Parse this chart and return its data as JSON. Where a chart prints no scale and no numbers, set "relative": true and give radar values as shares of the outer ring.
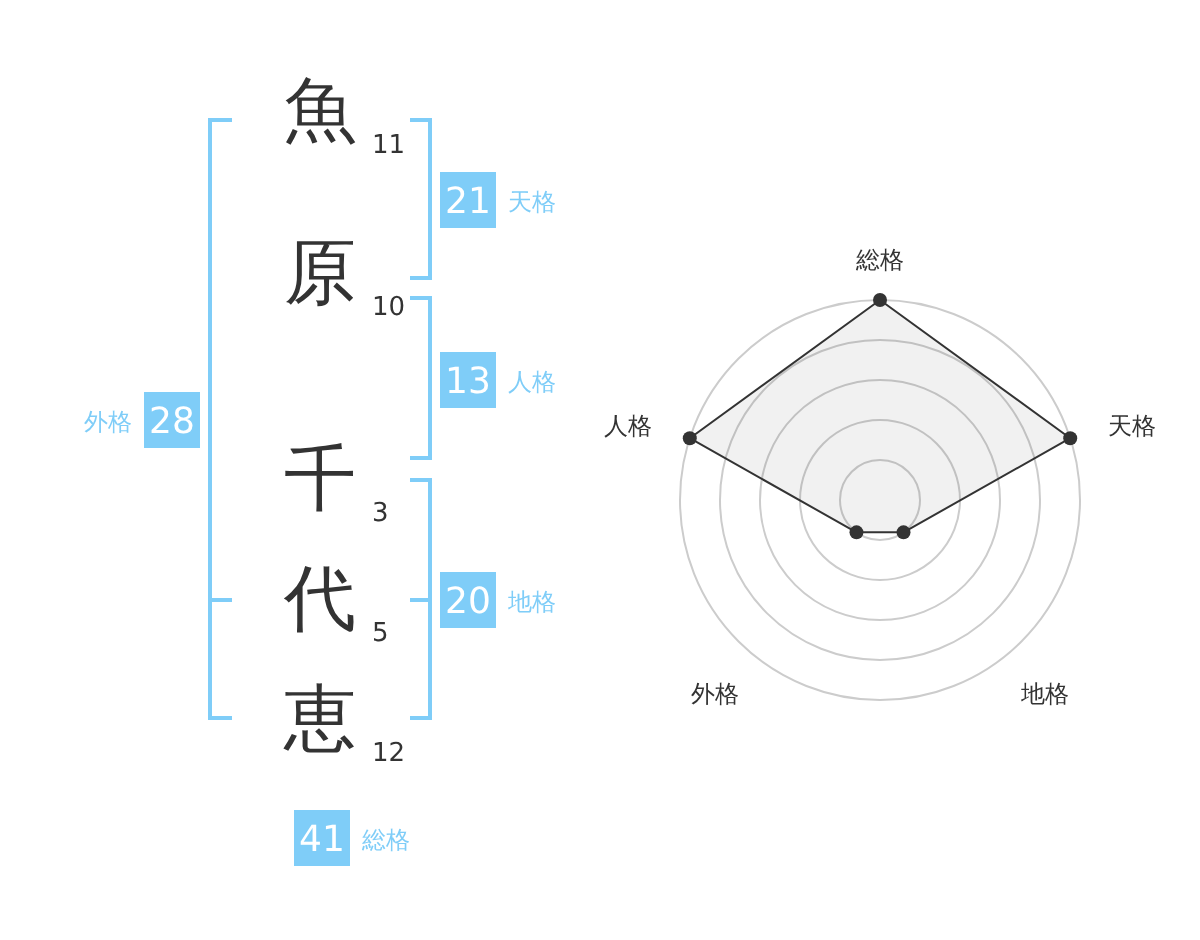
{
  "chart_data": [
    {
      "type": "other",
      "categories": [
        "魚",
        "原",
        "千",
        "代",
        "恵"
      ],
      "values": [
        11,
        10,
        3,
        5,
        12
      ],
      "data_labels": true,
      "color": "#333333"
    },
    {
      "type": "other",
      "categories": [
        "天格",
        "人格",
        "地格",
        "外格",
        "総格"
      ],
      "values": [
        21,
        13,
        20,
        28,
        41
      ],
      "data_labels": true,
      "color": "#7fcdf8"
    },
    {
      "type": "radar",
      "categories": [
        "総格",
        "天格",
        "地格",
        "外格",
        "人格"
      ],
      "relative": true,
      "marker": "circle",
      "series": [
        {
          "color": "#333333",
          "values": [
            1,
            1,
            0.2,
            0.2,
            1
          ]
        }
      ]
    }
  ]
}
